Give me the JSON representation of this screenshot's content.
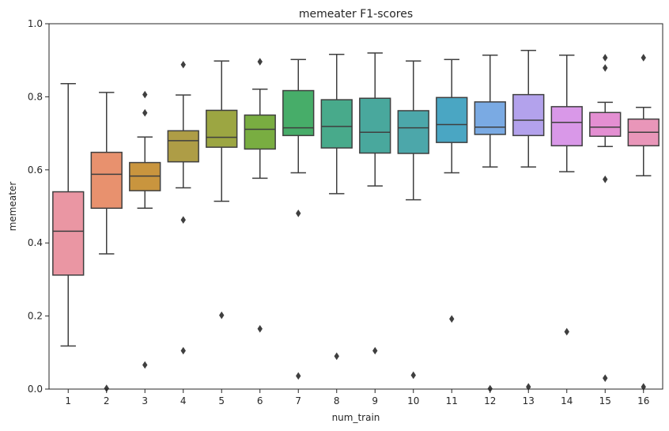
{
  "chart_data": {
    "type": "box",
    "title": "memeater F1-scores",
    "xlabel": "num_train",
    "ylabel": "memeater",
    "ylim": [
      0.0,
      1.0
    ],
    "yticks": [
      "0.0",
      "0.2",
      "0.4",
      "0.6",
      "0.8",
      "1.0"
    ],
    "categories": [
      "1",
      "2",
      "3",
      "4",
      "5",
      "6",
      "7",
      "8",
      "9",
      "10",
      "11",
      "12",
      "13",
      "14",
      "15",
      "16"
    ],
    "grid": false,
    "boxes": [
      {
        "q1": 0.312,
        "median": 0.432,
        "q3": 0.54,
        "whisker_low": 0.118,
        "whisker_high": 0.836,
        "outliers": [],
        "color": "#ea96a3"
      },
      {
        "q1": 0.495,
        "median": 0.588,
        "q3": 0.648,
        "whisker_low": 0.37,
        "whisker_high": 0.812,
        "outliers": [
          0.002
        ],
        "color": "#e8916e"
      },
      {
        "q1": 0.543,
        "median": 0.583,
        "q3": 0.62,
        "whisker_low": 0.495,
        "whisker_high": 0.69,
        "outliers": [
          0.806,
          0.756,
          0.066
        ],
        "color": "#c9953e"
      },
      {
        "q1": 0.622,
        "median": 0.68,
        "q3": 0.707,
        "whisker_low": 0.551,
        "whisker_high": 0.805,
        "outliers": [
          0.888,
          0.463,
          0.105
        ],
        "color": "#ae9d46"
      },
      {
        "q1": 0.662,
        "median": 0.689,
        "q3": 0.763,
        "whisker_low": 0.514,
        "whisker_high": 0.898,
        "outliers": [
          0.202
        ],
        "color": "#9ca642"
      },
      {
        "q1": 0.657,
        "median": 0.711,
        "q3": 0.75,
        "whisker_low": 0.577,
        "whisker_high": 0.821,
        "outliers": [
          0.896,
          0.165
        ],
        "color": "#79ad41"
      },
      {
        "q1": 0.694,
        "median": 0.715,
        "q3": 0.817,
        "whisker_low": 0.592,
        "whisker_high": 0.902,
        "outliers": [
          0.481,
          0.036
        ],
        "color": "#47ad69"
      },
      {
        "q1": 0.66,
        "median": 0.719,
        "q3": 0.792,
        "whisker_low": 0.535,
        "whisker_high": 0.916,
        "outliers": [
          0.09
        ],
        "color": "#48aa8b"
      },
      {
        "q1": 0.646,
        "median": 0.703,
        "q3": 0.796,
        "whisker_low": 0.556,
        "whisker_high": 0.92,
        "outliers": [
          0.105
        ],
        "color": "#49a89d"
      },
      {
        "q1": 0.645,
        "median": 0.715,
        "q3": 0.762,
        "whisker_low": 0.518,
        "whisker_high": 0.898,
        "outliers": [
          0.038
        ],
        "color": "#4ca7aa"
      },
      {
        "q1": 0.675,
        "median": 0.724,
        "q3": 0.798,
        "whisker_low": 0.592,
        "whisker_high": 0.902,
        "outliers": [
          0.192
        ],
        "color": "#4aa6c3"
      },
      {
        "q1": 0.697,
        "median": 0.717,
        "q3": 0.786,
        "whisker_low": 0.608,
        "whisker_high": 0.914,
        "outliers": [
          0.001
        ],
        "color": "#7aaae3"
      },
      {
        "q1": 0.694,
        "median": 0.736,
        "q3": 0.806,
        "whisker_low": 0.608,
        "whisker_high": 0.927,
        "outliers": [
          0.006
        ],
        "color": "#b3a2ec"
      },
      {
        "q1": 0.666,
        "median": 0.73,
        "q3": 0.773,
        "whisker_low": 0.595,
        "whisker_high": 0.914,
        "outliers": [
          0.157
        ],
        "color": "#d998e8"
      },
      {
        "q1": 0.692,
        "median": 0.717,
        "q3": 0.757,
        "whisker_low": 0.664,
        "whisker_high": 0.785,
        "outliers": [
          0.907,
          0.879,
          0.574,
          0.03
        ],
        "color": "#e48fd2"
      },
      {
        "q1": 0.666,
        "median": 0.703,
        "q3": 0.739,
        "whisker_low": 0.584,
        "whisker_high": 0.771,
        "outliers": [
          0.907,
          0.006
        ],
        "color": "#e996b9"
      }
    ],
    "line_color": "#3f3f3f"
  }
}
